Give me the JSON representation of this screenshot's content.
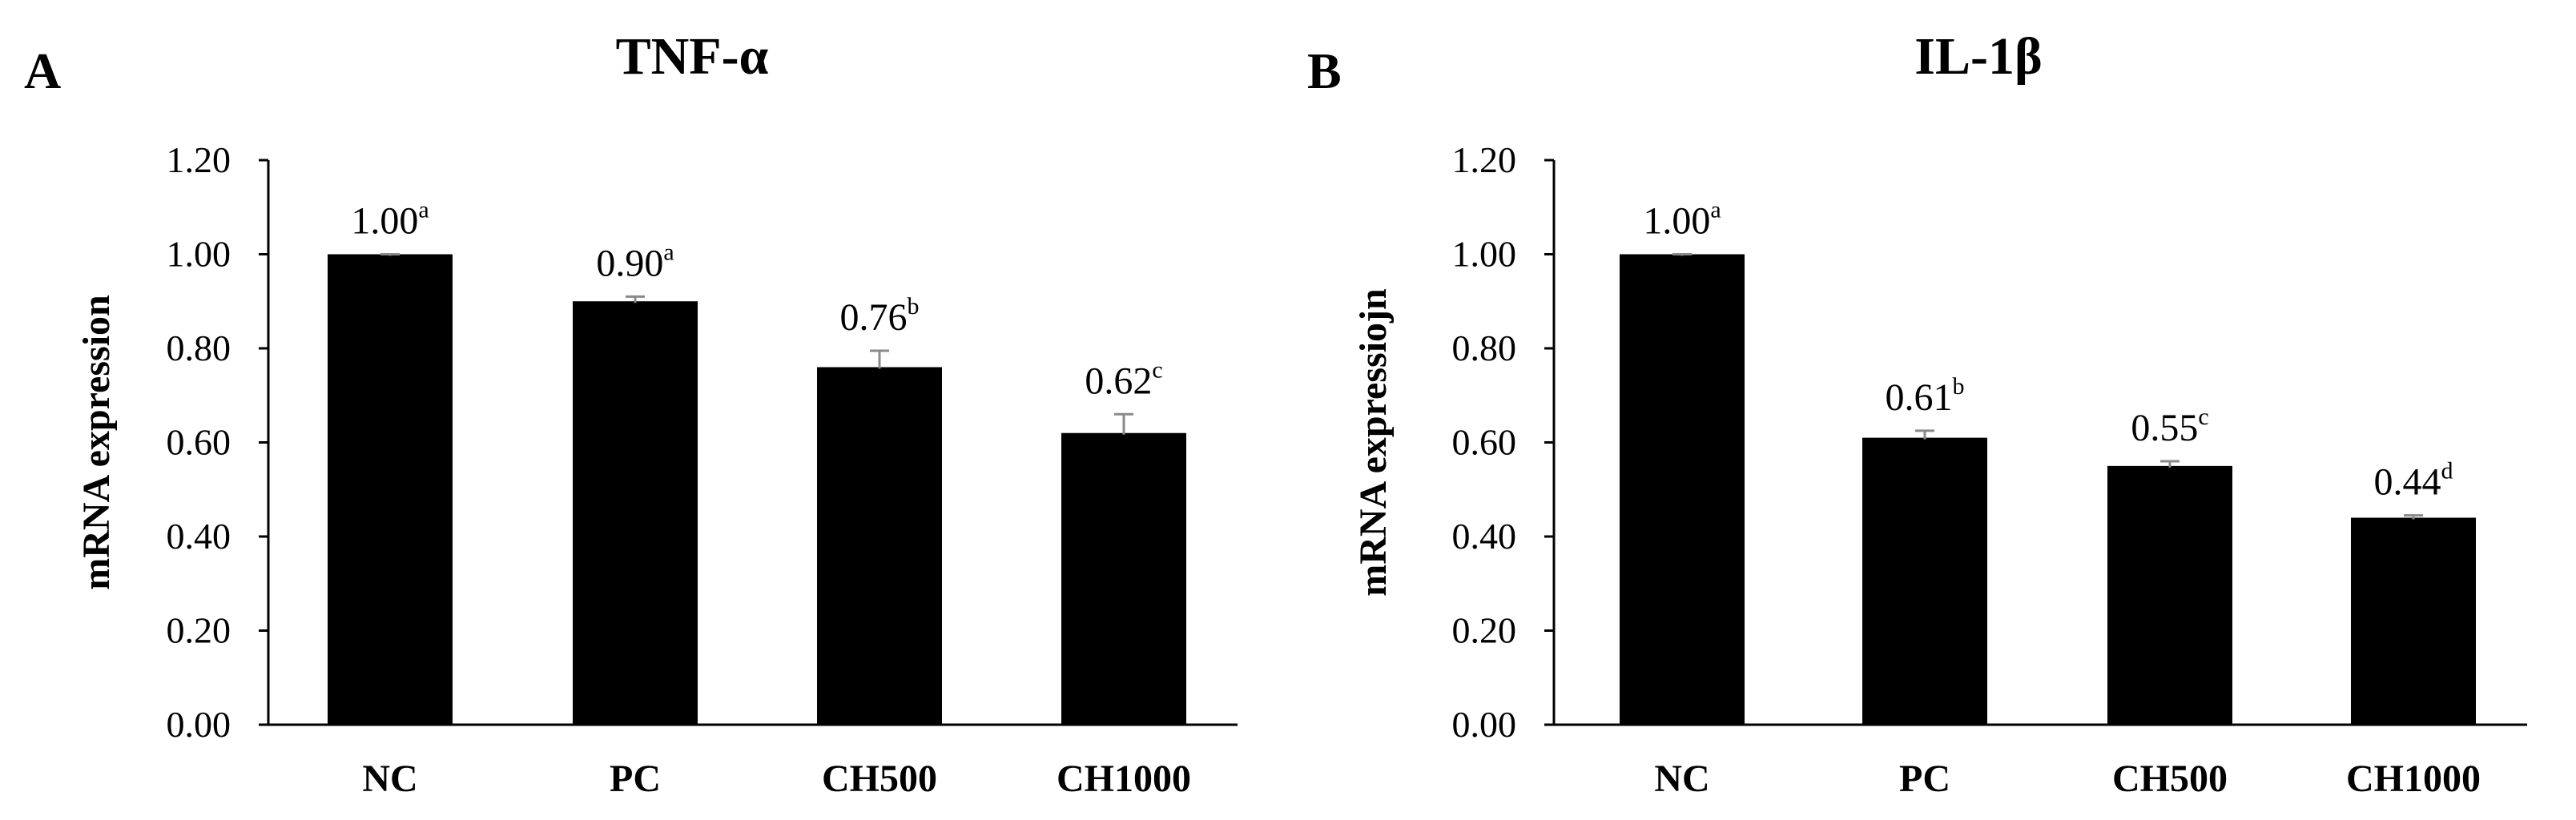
{
  "chart_data": [
    {
      "type": "bar",
      "panel": "A",
      "title": "TNF-α",
      "xlabel": "",
      "ylabel": "mRNA expression",
      "ylim": [
        0,
        1.2
      ],
      "yticks": [
        "0.00",
        "0.20",
        "0.40",
        "0.60",
        "0.80",
        "1.00",
        "1.20"
      ],
      "categories": [
        "NC",
        "PC",
        "CH500",
        "CH1000"
      ],
      "values": [
        1.0,
        0.9,
        0.76,
        0.62
      ],
      "errors": [
        0.0,
        0.01,
        0.035,
        0.04
      ],
      "value_labels": [
        "1.00",
        "0.90",
        "0.76",
        "0.62"
      ],
      "significance": [
        "a",
        "a",
        "b",
        "c"
      ],
      "grid": false
    },
    {
      "type": "bar",
      "panel": "B",
      "title": "IL-1β",
      "xlabel": "",
      "ylabel": "mRNA expressiojn",
      "ylim": [
        0,
        1.2
      ],
      "yticks": [
        "0.00",
        "0.20",
        "0.40",
        "0.60",
        "0.80",
        "1.00",
        "1.20"
      ],
      "categories": [
        "NC",
        "PC",
        "CH500",
        "CH1000"
      ],
      "values": [
        1.0,
        0.61,
        0.55,
        0.44
      ],
      "errors": [
        0.0,
        0.015,
        0.01,
        0.005
      ],
      "value_labels": [
        "1.00",
        "0.61",
        "0.55",
        "0.44"
      ],
      "significance": [
        "a",
        "b",
        "c",
        "d"
      ],
      "grid": false
    }
  ],
  "colors": {
    "bar": "#000000",
    "error_bar": "#8a8a8a",
    "axis": "#000000"
  }
}
